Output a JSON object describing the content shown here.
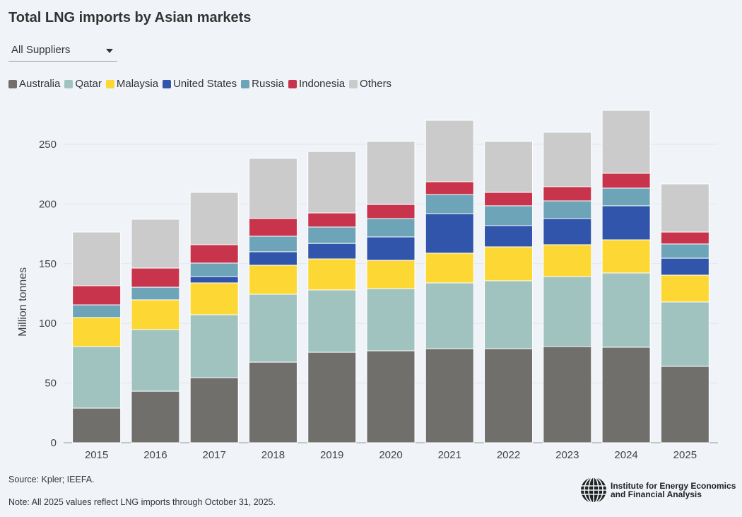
{
  "title": "Total LNG imports by Asian markets",
  "dropdown": {
    "selected": "All Suppliers"
  },
  "source": "Source: Kpler; IEEFA.",
  "note": "Note: All 2025 values reflect LNG imports through October 31, 2025.",
  "logo": {
    "line1": "Institute for Energy Economics",
    "line2": "and Financial Analysis"
  },
  "chart_data": {
    "type": "bar",
    "stacked": true,
    "title": "Total LNG imports by Asian markets",
    "xlabel": "",
    "ylabel": "Million tonnes",
    "ylim": [
      0,
      280
    ],
    "yticks": [
      0,
      50,
      100,
      150,
      200,
      250
    ],
    "grid": true,
    "legend_position": "top-left",
    "categories": [
      "2015",
      "2016",
      "2017",
      "2018",
      "2019",
      "2020",
      "2021",
      "2022",
      "2023",
      "2024",
      "2025"
    ],
    "series": [
      {
        "name": "Australia",
        "color": "#706f6b",
        "values": [
          29.0,
          43.2,
          54.5,
          67.5,
          75.8,
          77.0,
          78.8,
          78.8,
          80.6,
          80.0,
          64.0
        ]
      },
      {
        "name": "Qatar",
        "color": "#a0c3c0",
        "values": [
          51.6,
          51.6,
          52.7,
          56.9,
          52.2,
          52.1,
          55.1,
          56.9,
          58.6,
          62.2,
          53.9
        ]
      },
      {
        "name": "Malaysia",
        "color": "#fdd835",
        "values": [
          24.3,
          24.9,
          26.7,
          24.3,
          26.0,
          23.7,
          24.9,
          28.4,
          26.7,
          27.8,
          22.5
        ]
      },
      {
        "name": "United States",
        "color": "#3155ab",
        "values": [
          0,
          0,
          5.3,
          11.3,
          13.0,
          19.6,
          33.1,
          17.8,
          21.9,
          28.5,
          14.2
        ]
      },
      {
        "name": "Russia",
        "color": "#6ea4b8",
        "values": [
          10.6,
          10.6,
          11.3,
          13.0,
          13.7,
          15.4,
          16.0,
          16.6,
          14.8,
          14.8,
          11.9
        ]
      },
      {
        "name": "Indonesia",
        "color": "#c8344c",
        "values": [
          16.0,
          16.0,
          15.4,
          14.8,
          11.8,
          11.8,
          10.7,
          11.2,
          11.9,
          12.4,
          10.0
        ]
      },
      {
        "name": "Others",
        "color": "#cbcbcb",
        "values": [
          45.0,
          40.9,
          43.8,
          50.4,
          51.5,
          52.8,
          51.5,
          42.7,
          45.6,
          52.7,
          40.3
        ]
      }
    ]
  }
}
